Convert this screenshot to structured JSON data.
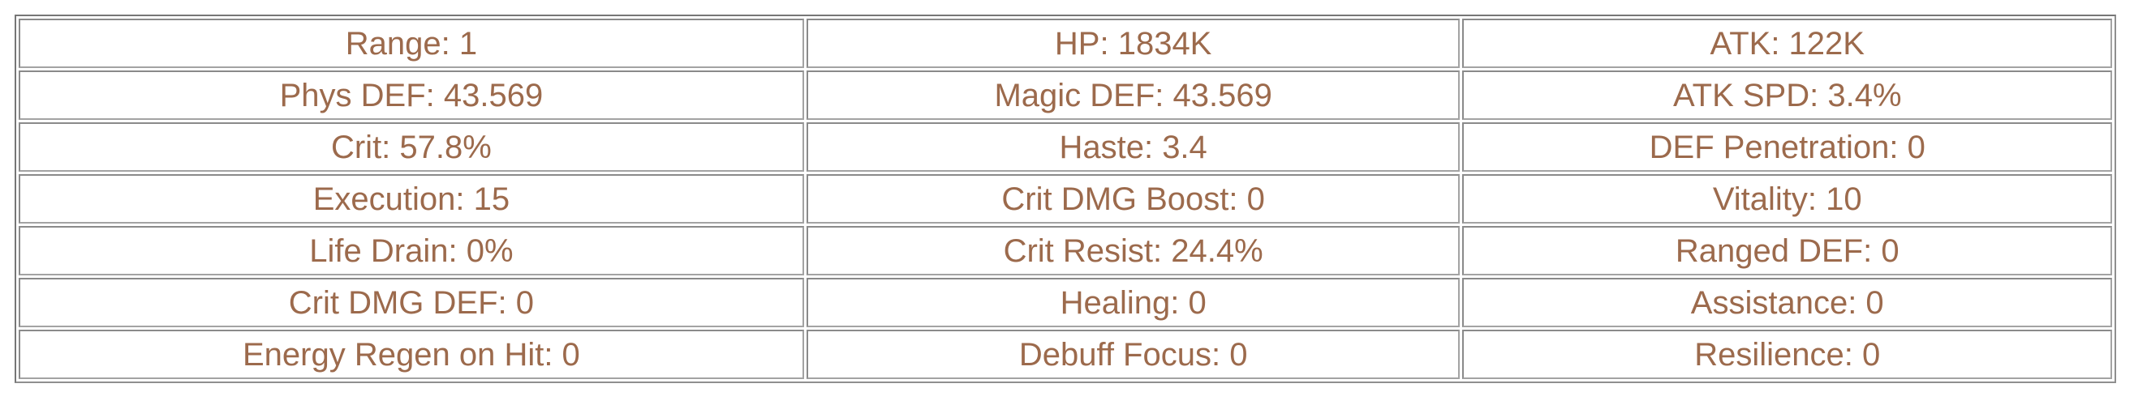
{
  "colors": {
    "stat_text": "#9C6A4C",
    "table_border": "#767676",
    "cell_border": "#A3A3A3",
    "background": "#FFFFFF"
  },
  "table": {
    "columns": 3,
    "rows": [
      {
        "cells": [
          "Range: 1",
          "HP: 1834K",
          "ATK: 122K"
        ]
      },
      {
        "cells": [
          "Phys DEF: 43.569",
          "Magic DEF: 43.569",
          "ATK SPD: 3.4%"
        ]
      },
      {
        "cells": [
          "Crit: 57.8%",
          "Haste: 3.4",
          "DEF Penetration: 0"
        ]
      },
      {
        "cells": [
          "Execution: 15",
          "Crit DMG Boost: 0",
          "Vitality: 10"
        ]
      },
      {
        "cells": [
          "Life Drain: 0%",
          "Crit Resist: 24.4%",
          "Ranged DEF: 0"
        ]
      },
      {
        "cells": [
          "Crit DMG DEF: 0",
          "Healing: 0",
          "Assistance: 0"
        ]
      },
      {
        "cells": [
          "Energy Regen on Hit: 0",
          "Debuff Focus: 0",
          "Resilience: 0"
        ]
      }
    ]
  }
}
